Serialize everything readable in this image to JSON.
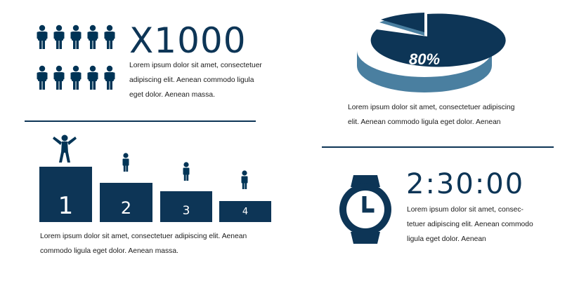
{
  "people_block": {
    "headline": "X1000",
    "text_lines": [
      "Lorem ipsum dolor sit amet, consectetuer",
      "adipiscing elit. Aenean commodo ligula",
      "eget dolor. Aenean massa."
    ],
    "icon": "person-icon"
  },
  "pie_block": {
    "percent_label": "80%",
    "percent_value": 80,
    "colors": {
      "main": "#0d3556",
      "side": "#4a7fa0"
    },
    "text_lines": [
      "Lorem ipsum dolor sit amet, consectetuer adipiscing",
      "elit. Aenean commodo ligula eget dolor. Aenean"
    ]
  },
  "podium_block": {
    "places": [
      "1",
      "2",
      "3",
      "4"
    ],
    "text_lines": [
      "Lorem ipsum dolor sit amet, consectetuer adipiscing elit. Aenean",
      "commodo ligula eget dolor. Aenean massa."
    ],
    "icons": [
      "winner-icon",
      "person-icon"
    ]
  },
  "time_block": {
    "headline": "2:30:00",
    "icon": "watch-icon",
    "text_lines": [
      "Lorem ipsum dolor sit amet, consec-",
      "tetuer adipiscing elit. Aenean commodo",
      "ligula eget dolor. Aenean"
    ]
  },
  "colors": {
    "navy": "#0d3556",
    "steel": "#4a7fa0"
  }
}
